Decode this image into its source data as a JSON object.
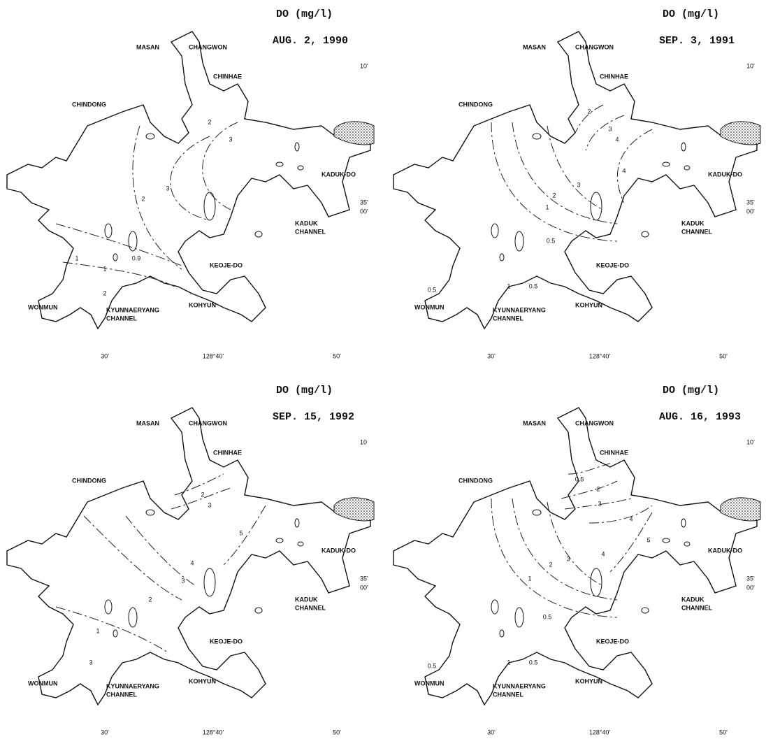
{
  "panels": [
    {
      "title": "DO (mg/l)",
      "date": "AUG. 2, 1990",
      "places": [
        [
          "MASAN"
        ],
        [
          "CHANGWON"
        ],
        [
          "CHINHAE"
        ],
        [
          "CHINDONG"
        ],
        [
          "KADUK-DO"
        ],
        [
          "KADUK",
          "CHANNEL"
        ],
        [
          "KEOJE-DO"
        ],
        [
          "KOHYUN"
        ],
        [
          "WONMUN"
        ],
        [
          "KYUNNAERYANG",
          "CHANNEL"
        ]
      ],
      "lat_labels": [
        "10'",
        "35'",
        "00'"
      ],
      "lon_labels": [
        "30'",
        "128°40'",
        "50'"
      ],
      "contour_labels": [
        "2",
        "3",
        "2",
        "3",
        "1",
        "0.9",
        "1",
        "2"
      ]
    },
    {
      "title": "DO (mg/l)",
      "date": "SEP. 3, 1991",
      "places": [
        [
          "MASAN"
        ],
        [
          "CHANGWON"
        ],
        [
          "CHINHAE"
        ],
        [
          "CHINDONG"
        ],
        [
          "KADUK-DO"
        ],
        [
          "KADUK",
          "CHANNEL"
        ],
        [
          "KEOJE-DO"
        ],
        [
          "KOHYUN"
        ],
        [
          "WONMUN"
        ],
        [
          "KYUNNAERYANG",
          "CHANNEL"
        ]
      ],
      "lat_labels": [
        "10'",
        "35'",
        "00'"
      ],
      "lon_labels": [
        "30'",
        "128°40'",
        "50'"
      ],
      "contour_labels": [
        "2",
        "3",
        "4",
        "4",
        "3",
        "2",
        "1",
        "0.5",
        "0.5",
        "1",
        "0.5"
      ]
    },
    {
      "title": "DO (mg/l)",
      "date": "SEP. 15, 1992",
      "places": [
        [
          "MASAN"
        ],
        [
          "CHANGWON"
        ],
        [
          "CHINHAE"
        ],
        [
          "CHINDONG"
        ],
        [
          "KADUK-DO"
        ],
        [
          "KADUK",
          "CHANNEL"
        ],
        [
          "KEOJE-DO"
        ],
        [
          "KOHYUN"
        ],
        [
          "WONMUN"
        ],
        [
          "KYUNNAERYANG",
          "CHANNEL"
        ]
      ],
      "lat_labels": [
        "10",
        "35'",
        "00'"
      ],
      "lon_labels": [
        "30'",
        "128°40'",
        "50'"
      ],
      "contour_labels": [
        "2",
        "3",
        "5",
        "4",
        "3",
        "2",
        "1",
        "3"
      ]
    },
    {
      "title": "DO (mg/l)",
      "date": "AUG. 16, 1993",
      "places": [
        [
          "MASAN"
        ],
        [
          "CHANGWON"
        ],
        [
          "CHINHAE"
        ],
        [
          "CHINDONG"
        ],
        [
          "KADUK-DO"
        ],
        [
          "KADUK",
          "CHANNEL"
        ],
        [
          "KEOJE-DO"
        ],
        [
          "KOHYUN"
        ],
        [
          "WONMUN"
        ],
        [
          "KYUNNAERYANG",
          "CHANNEL"
        ]
      ],
      "lat_labels": [
        "10'",
        "35'",
        "00'"
      ],
      "lon_labels": [
        "30'",
        "128°40'",
        "50'"
      ],
      "contour_labels": [
        "0.5",
        "2",
        "3",
        "4",
        "5",
        "4",
        "3",
        "2",
        "1",
        "0.5",
        "0.5",
        "1",
        "0.5"
      ]
    }
  ]
}
